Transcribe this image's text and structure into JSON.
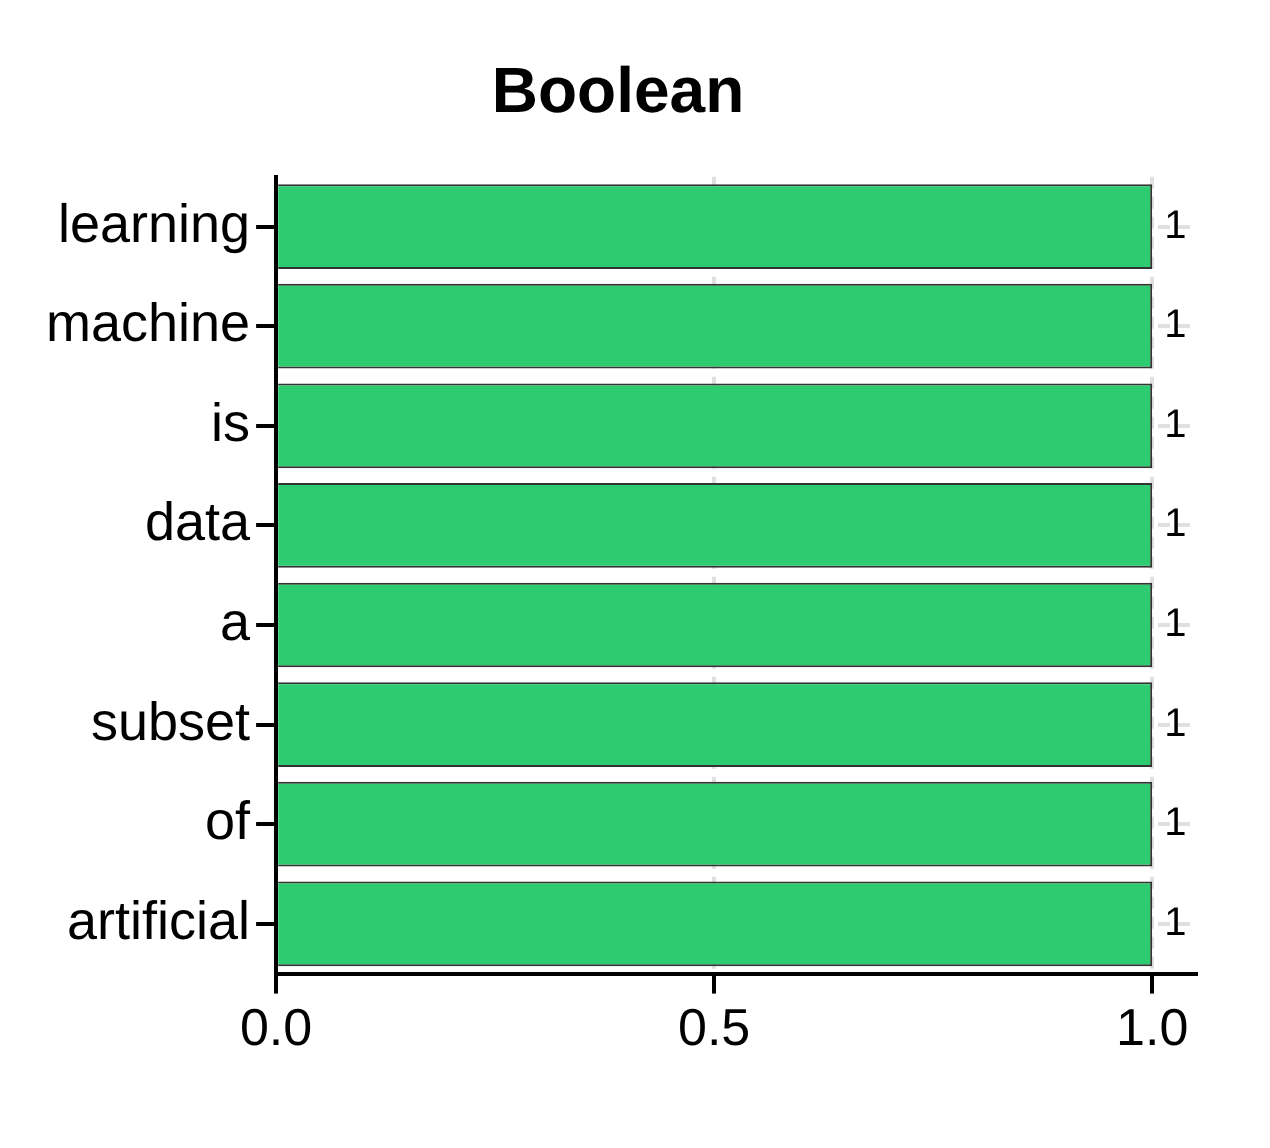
{
  "chart_data": {
    "type": "bar",
    "orientation": "horizontal",
    "title": "Boolean",
    "categories": [
      "learning",
      "machine",
      "is",
      "data",
      "a",
      "subset",
      "of",
      "artificial"
    ],
    "values": [
      1,
      1,
      1,
      1,
      1,
      1,
      1,
      1
    ],
    "color": "#2ecc71",
    "xlim": [
      0,
      1.05
    ],
    "xticks": [
      {
        "value": 0,
        "label": "0.0"
      },
      {
        "value": 0.5,
        "label": "0.5"
      },
      {
        "value": 1,
        "label": "1.0"
      }
    ],
    "grid": true,
    "legend": false,
    "data_labels": true
  }
}
